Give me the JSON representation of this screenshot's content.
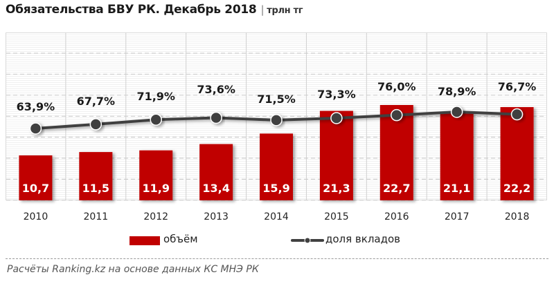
{
  "header": {
    "title": "Обязательства  БВУ РК. Декабрь 2018",
    "separator": "|",
    "unit": "трлн тг"
  },
  "legend": {
    "bar_label": "объём",
    "line_label": "доля вкладов"
  },
  "footer": {
    "source": "Расчёты Ranking.kz на основе данных  КС МНЭ РК"
  },
  "colors": {
    "bar": "#c00000",
    "line": "#404040",
    "marker_fill": "#404040",
    "marker_stroke": "#ffffff"
  },
  "chart_data": {
    "type": "bar+line",
    "title": "Обязательства  БВУ РК. Декабрь 2018 | трлн тг",
    "xlabel": "",
    "ylabel": "",
    "categories": [
      "2010",
      "2011",
      "2012",
      "2013",
      "2014",
      "2015",
      "2016",
      "2017",
      "2018"
    ],
    "series": [
      {
        "name": "объём",
        "type": "bar",
        "unit": "трлн тг",
        "values": [
          10.7,
          11.5,
          11.9,
          13.4,
          15.9,
          21.3,
          22.7,
          21.1,
          22.2
        ],
        "labels": [
          "10,7",
          "11,5",
          "11,9",
          "13,4",
          "15,9",
          "21,3",
          "22,7",
          "21,1",
          "22,2"
        ]
      },
      {
        "name": "доля вкладов",
        "type": "line",
        "unit": "%",
        "values": [
          63.9,
          67.7,
          71.9,
          73.6,
          71.5,
          73.3,
          76.0,
          78.9,
          76.7
        ],
        "labels": [
          "63,9%",
          "67,7%",
          "71,9%",
          "73,6%",
          "71,5%",
          "73,3%",
          "76,0%",
          "78,9%",
          "76,7%"
        ]
      }
    ],
    "grid": true,
    "legend_position": "bottom"
  }
}
